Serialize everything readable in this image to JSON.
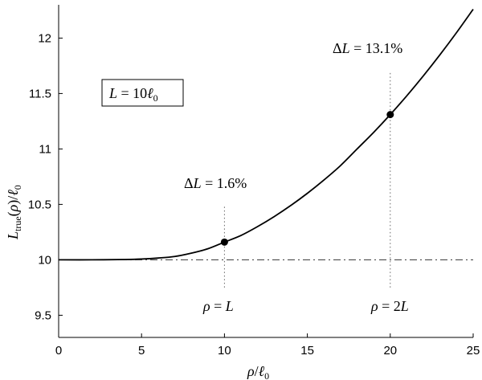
{
  "chart_data": {
    "type": "line",
    "xlim": [
      0,
      25
    ],
    "ylim": [
      9.3,
      12.3
    ],
    "x_ticks": [
      0,
      5,
      10,
      15,
      20,
      25
    ],
    "x_tick_labels": [
      "0",
      "5",
      "10",
      "15",
      "20",
      "25"
    ],
    "y_ticks": [
      9.5,
      10,
      10.5,
      11,
      11.5,
      12
    ],
    "y_tick_labels": [
      "9.5",
      "10",
      "10.5",
      "11",
      "11.5",
      "12"
    ],
    "grid": false,
    "xlabel": "ρ/ℓ0",
    "ylabel": "Ltrue(ρ)/ℓ0",
    "series": [
      {
        "style": "solid",
        "x": [
          0,
          2,
          4,
          5,
          6,
          7,
          8,
          9,
          10,
          11,
          12,
          13,
          14,
          15,
          16,
          17,
          18,
          19,
          20,
          21,
          22,
          23,
          24,
          25
        ],
        "y": [
          10.0,
          10.0,
          10.003,
          10.007,
          10.016,
          10.03,
          10.06,
          10.1,
          10.16,
          10.22,
          10.3,
          10.39,
          10.49,
          10.6,
          10.72,
          10.85,
          11.0,
          11.15,
          11.31,
          11.48,
          11.66,
          11.85,
          12.05,
          12.26
        ]
      }
    ],
    "baseline": {
      "y": 10,
      "style": "dash-dot"
    },
    "markers": [
      {
        "x": 10,
        "y": 10.16
      },
      {
        "x": 20,
        "y": 11.31
      }
    ],
    "vertical_guides": [
      {
        "x": 10,
        "y_from": 9.75,
        "y_to": 10.5,
        "style": "dotted"
      },
      {
        "x": 20,
        "y_from": 9.75,
        "y_to": 11.7,
        "style": "dotted"
      }
    ],
    "annotations": [
      {
        "id": "dl1",
        "text": "ΔL = 1.6%",
        "x": 10,
        "y": 10.7
      },
      {
        "id": "dl2",
        "text": "ΔL = 13.1%",
        "x": 20,
        "y": 11.91
      },
      {
        "id": "rho1",
        "text": "ρ = L",
        "x": 10,
        "y": 9.6
      },
      {
        "id": "rho2",
        "text": "ρ = 2L",
        "x": 20,
        "y": 9.6
      }
    ],
    "legend_box": {
      "text": "L = 10ℓ0",
      "position": "upper-left"
    }
  }
}
